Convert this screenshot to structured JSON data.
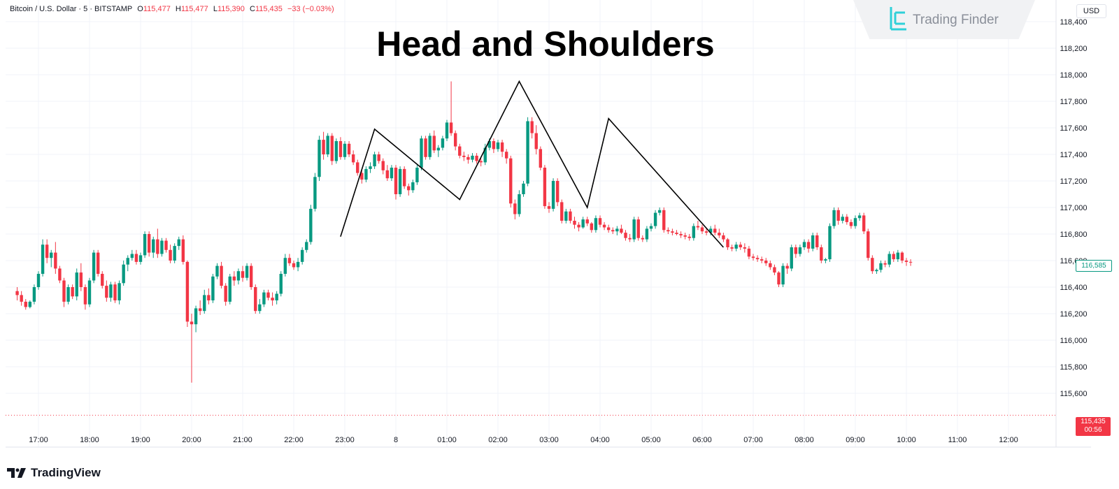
{
  "legend": {
    "symbol": "Bitcoin / U.S. Dollar · 5 · BITSTAMP",
    "open_label": "O",
    "open": "115,477",
    "high_label": "H",
    "high": "115,477",
    "low_label": "L",
    "low": "115,390",
    "close_label": "C",
    "close": "115,435",
    "change": "−33 (−0.03%)"
  },
  "currency": "USD",
  "watermark": {
    "text": "Trading Finder"
  },
  "footer_logo": "TradingView",
  "price_tags": {
    "current": "116,585",
    "last": "115,435",
    "countdown": "00:56"
  },
  "colors": {
    "up": "#089981",
    "down": "#f23645",
    "pattern_line": "#000000",
    "grid": "#f0f3fa"
  },
  "chart_data": {
    "type": "candlestick",
    "title": "Head and Shoulders",
    "xlabel": "",
    "ylabel": "",
    "ylim": [
      115500,
      118500
    ],
    "y_ticks": [
      "115,600",
      "115,800",
      "116,000",
      "116,200",
      "116,400",
      "116,600",
      "116,800",
      "117,000",
      "117,200",
      "117,400",
      "117,600",
      "117,800",
      "118,000",
      "118,200",
      "118,400"
    ],
    "x_ticks": [
      "17:00",
      "18:00",
      "19:00",
      "20:00",
      "21:00",
      "22:00",
      "23:00",
      "8",
      "01:00",
      "02:00",
      "03:00",
      "04:00",
      "05:00",
      "06:00",
      "07:00",
      "08:00",
      "09:00",
      "10:00",
      "11:00",
      "12:00"
    ],
    "candle_interval_minutes": 5,
    "first_candle_time": "16:35",
    "last_price": 115435,
    "current_price": 116585,
    "candles": [
      [
        116370,
        116400,
        116300,
        116340
      ],
      [
        116340,
        116370,
        116260,
        116290
      ],
      [
        116290,
        116310,
        116230,
        116250
      ],
      [
        116250,
        116300,
        116240,
        116290
      ],
      [
        116290,
        116420,
        116270,
        116400
      ],
      [
        116400,
        116520,
        116380,
        116500
      ],
      [
        116500,
        116760,
        116480,
        116720
      ],
      [
        116720,
        116760,
        116580,
        116620
      ],
      [
        116620,
        116680,
        116550,
        116660
      ],
      [
        116660,
        116740,
        116500,
        116540
      ],
      [
        116540,
        116560,
        116430,
        116450
      ],
      [
        116450,
        116470,
        116250,
        116290
      ],
      [
        116290,
        116420,
        116270,
        116400
      ],
      [
        116400,
        116420,
        116310,
        116330
      ],
      [
        116330,
        116540,
        116300,
        116510
      ],
      [
        116510,
        116580,
        116370,
        116400
      ],
      [
        116400,
        116420,
        116230,
        116270
      ],
      [
        116270,
        116470,
        116250,
        116450
      ],
      [
        116450,
        116680,
        116430,
        116660
      ],
      [
        116660,
        116680,
        116480,
        116500
      ],
      [
        116500,
        116520,
        116390,
        116410
      ],
      [
        116410,
        116450,
        116290,
        116320
      ],
      [
        116320,
        116440,
        116290,
        116420
      ],
      [
        116420,
        116440,
        116280,
        116300
      ],
      [
        116300,
        116450,
        116270,
        116430
      ],
      [
        116430,
        116600,
        116410,
        116570
      ],
      [
        116570,
        116640,
        116520,
        116620
      ],
      [
        116620,
        116680,
        116600,
        116650
      ],
      [
        116650,
        116680,
        116570,
        116590
      ],
      [
        116590,
        116660,
        116570,
        116640
      ],
      [
        116640,
        116820,
        116620,
        116800
      ],
      [
        116800,
        116820,
        116630,
        116660
      ],
      [
        116660,
        116780,
        116620,
        116760
      ],
      [
        116760,
        116840,
        116620,
        116650
      ],
      [
        116650,
        116770,
        116630,
        116750
      ],
      [
        116750,
        116770,
        116660,
        116680
      ],
      [
        116680,
        116720,
        116580,
        116600
      ],
      [
        116600,
        116730,
        116580,
        116710
      ],
      [
        116710,
        116780,
        116680,
        116760
      ],
      [
        116760,
        116790,
        116570,
        116590
      ],
      [
        116590,
        116600,
        116100,
        116140
      ],
      [
        116140,
        116200,
        115680,
        116120
      ],
      [
        116120,
        116260,
        116060,
        116240
      ],
      [
        116240,
        116300,
        116190,
        116220
      ],
      [
        116220,
        116380,
        116200,
        116340
      ],
      [
        116340,
        116390,
        116270,
        116300
      ],
      [
        116300,
        116500,
        116280,
        116480
      ],
      [
        116480,
        116580,
        116460,
        116560
      ],
      [
        116560,
        116590,
        116390,
        116410
      ],
      [
        116410,
        116430,
        116260,
        116290
      ],
      [
        116290,
        116500,
        116270,
        116480
      ],
      [
        116480,
        116520,
        116410,
        116450
      ],
      [
        116450,
        116540,
        116420,
        116520
      ],
      [
        116520,
        116560,
        116440,
        116470
      ],
      [
        116470,
        116580,
        116450,
        116560
      ],
      [
        116560,
        116580,
        116380,
        116400
      ],
      [
        116400,
        116420,
        116200,
        116220
      ],
      [
        116220,
        116310,
        116200,
        116270
      ],
      [
        116270,
        116380,
        116250,
        116360
      ],
      [
        116360,
        116380,
        116300,
        116320
      ],
      [
        116320,
        116360,
        116260,
        116300
      ],
      [
        116300,
        116370,
        116270,
        116350
      ],
      [
        116350,
        116520,
        116330,
        116500
      ],
      [
        116500,
        116650,
        116480,
        116620
      ],
      [
        116620,
        116650,
        116560,
        116580
      ],
      [
        116580,
        116600,
        116530,
        116550
      ],
      [
        116550,
        116620,
        116520,
        116590
      ],
      [
        116590,
        116700,
        116570,
        116680
      ],
      [
        116680,
        116760,
        116660,
        116740
      ],
      [
        116740,
        117020,
        116720,
        116990
      ],
      [
        116990,
        117260,
        116970,
        117230
      ],
      [
        117230,
        117540,
        117200,
        117510
      ],
      [
        117510,
        117570,
        117360,
        117400
      ],
      [
        117400,
        117560,
        117380,
        117540
      ],
      [
        117540,
        117560,
        117320,
        117350
      ],
      [
        117350,
        117520,
        117330,
        117500
      ],
      [
        117500,
        117530,
        117360,
        117380
      ],
      [
        117380,
        117500,
        117360,
        117480
      ],
      [
        117480,
        117500,
        117380,
        117400
      ],
      [
        117400,
        117430,
        117320,
        117340
      ],
      [
        117340,
        117360,
        117240,
        117260
      ],
      [
        117260,
        117290,
        117180,
        117210
      ],
      [
        117210,
        117310,
        117190,
        117290
      ],
      [
        117290,
        117340,
        117260,
        117310
      ],
      [
        117310,
        117420,
        117290,
        117400
      ],
      [
        117400,
        117420,
        117330,
        117350
      ],
      [
        117350,
        117370,
        117250,
        117280
      ],
      [
        117280,
        117320,
        117200,
        117220
      ],
      [
        117220,
        117320,
        117200,
        117300
      ],
      [
        117300,
        117320,
        117060,
        117100
      ],
      [
        117100,
        117310,
        117080,
        117290
      ],
      [
        117290,
        117310,
        117140,
        117160
      ],
      [
        117160,
        117180,
        117090,
        117130
      ],
      [
        117130,
        117210,
        117110,
        117190
      ],
      [
        117190,
        117320,
        117170,
        117300
      ],
      [
        117300,
        117540,
        117280,
        117520
      ],
      [
        117520,
        117540,
        117360,
        117380
      ],
      [
        117380,
        117560,
        117360,
        117540
      ],
      [
        117540,
        117580,
        117410,
        117430
      ],
      [
        117430,
        117470,
        117380,
        117450
      ],
      [
        117450,
        117540,
        117430,
        117520
      ],
      [
        117520,
        117660,
        117500,
        117640
      ],
      [
        117640,
        117950,
        117540,
        117560
      ],
      [
        117560,
        117580,
        117430,
        117460
      ],
      [
        117460,
        117480,
        117370,
        117390
      ],
      [
        117390,
        117420,
        117350,
        117380
      ],
      [
        117380,
        117400,
        117330,
        117360
      ],
      [
        117360,
        117410,
        117340,
        117390
      ],
      [
        117390,
        117410,
        117330,
        117350
      ],
      [
        117350,
        117370,
        117310,
        117340
      ],
      [
        117340,
        117480,
        117320,
        117450
      ],
      [
        117450,
        117520,
        117430,
        117500
      ],
      [
        117500,
        117520,
        117410,
        117440
      ],
      [
        117440,
        117510,
        117420,
        117490
      ],
      [
        117490,
        117510,
        117380,
        117420
      ],
      [
        117420,
        117440,
        117330,
        117370
      ],
      [
        117370,
        117390,
        117000,
        117030
      ],
      [
        117030,
        117060,
        116910,
        116950
      ],
      [
        116950,
        117130,
        116930,
        117100
      ],
      [
        117100,
        117200,
        117080,
        117180
      ],
      [
        117180,
        117680,
        117160,
        117650
      ],
      [
        117650,
        117680,
        117520,
        117560
      ],
      [
        117560,
        117620,
        117400,
        117440
      ],
      [
        117440,
        117460,
        117280,
        117300
      ],
      [
        117300,
        117320,
        116990,
        117010
      ],
      [
        117010,
        117040,
        116960,
        116990
      ],
      [
        116990,
        117220,
        116970,
        117200
      ],
      [
        117200,
        117220,
        117010,
        117040
      ],
      [
        117040,
        117060,
        116880,
        116900
      ],
      [
        116900,
        116990,
        116880,
        116970
      ],
      [
        116970,
        116990,
        116880,
        116900
      ],
      [
        116900,
        116930,
        116840,
        116870
      ],
      [
        116870,
        116890,
        116820,
        116850
      ],
      [
        116850,
        116930,
        116840,
        116910
      ],
      [
        116910,
        116930,
        116860,
        116880
      ],
      [
        116880,
        116890,
        116810,
        116830
      ],
      [
        116830,
        116940,
        116810,
        116920
      ],
      [
        116920,
        116940,
        116850,
        116870
      ],
      [
        116870,
        116890,
        116830,
        116850
      ],
      [
        116850,
        116870,
        116810,
        116830
      ],
      [
        116830,
        116850,
        116800,
        116820
      ],
      [
        116820,
        116860,
        116790,
        116840
      ],
      [
        116840,
        116870,
        116800,
        116810
      ],
      [
        116810,
        116830,
        116750,
        116770
      ],
      [
        116770,
        116800,
        116740,
        116760
      ],
      [
        116760,
        116930,
        116740,
        116910
      ],
      [
        116910,
        116930,
        116750,
        116770
      ],
      [
        116770,
        116790,
        116740,
        116760
      ],
      [
        116760,
        116860,
        116740,
        116840
      ],
      [
        116840,
        116880,
        116820,
        116860
      ],
      [
        116860,
        116980,
        116840,
        116960
      ],
      [
        116960,
        117000,
        116940,
        116980
      ],
      [
        116980,
        117000,
        116810,
        116830
      ],
      [
        116830,
        116850,
        116800,
        116820
      ],
      [
        116820,
        116840,
        116790,
        116810
      ],
      [
        116810,
        116830,
        116790,
        116800
      ],
      [
        116800,
        116820,
        116770,
        116790
      ],
      [
        116790,
        116810,
        116760,
        116780
      ],
      [
        116780,
        116800,
        116750,
        116770
      ],
      [
        116770,
        116880,
        116750,
        116860
      ],
      [
        116860,
        116900,
        116830,
        116850
      ],
      [
        116850,
        116870,
        116800,
        116820
      ],
      [
        116820,
        116840,
        116790,
        116810
      ],
      [
        116810,
        116860,
        116790,
        116840
      ],
      [
        116840,
        116870,
        116790,
        116810
      ],
      [
        116810,
        116840,
        116770,
        116790
      ],
      [
        116790,
        116810,
        116740,
        116760
      ],
      [
        116760,
        116770,
        116680,
        116700
      ],
      [
        116700,
        116720,
        116670,
        116690
      ],
      [
        116690,
        116740,
        116670,
        116720
      ],
      [
        116720,
        116740,
        116680,
        116700
      ],
      [
        116700,
        116730,
        116660,
        116690
      ],
      [
        116690,
        116710,
        116610,
        116630
      ],
      [
        116630,
        116650,
        116600,
        116620
      ],
      [
        116620,
        116640,
        116590,
        116610
      ],
      [
        116610,
        116630,
        116580,
        116600
      ],
      [
        116600,
        116620,
        116560,
        116580
      ],
      [
        116580,
        116600,
        116530,
        116550
      ],
      [
        116550,
        116570,
        116490,
        116510
      ],
      [
        116510,
        116520,
        116400,
        116420
      ],
      [
        116420,
        116580,
        116400,
        116560
      ],
      [
        116560,
        116580,
        116500,
        116540
      ],
      [
        116540,
        116720,
        116520,
        116700
      ],
      [
        116700,
        116720,
        116620,
        116650
      ],
      [
        116650,
        116720,
        116630,
        116700
      ],
      [
        116700,
        116760,
        116680,
        116740
      ],
      [
        116740,
        116760,
        116660,
        116690
      ],
      [
        116690,
        116810,
        116670,
        116790
      ],
      [
        116790,
        116810,
        116680,
        116700
      ],
      [
        116700,
        116720,
        116580,
        116600
      ],
      [
        116600,
        116620,
        116580,
        116610
      ],
      [
        116610,
        116880,
        116590,
        116860
      ],
      [
        116860,
        117000,
        116840,
        116980
      ],
      [
        116980,
        117000,
        116870,
        116900
      ],
      [
        116900,
        116950,
        116880,
        116930
      ],
      [
        116930,
        116950,
        116870,
        116890
      ],
      [
        116890,
        116910,
        116840,
        116860
      ],
      [
        116860,
        116940,
        116840,
        116920
      ],
      [
        116920,
        116960,
        116900,
        116940
      ],
      [
        116940,
        116960,
        116800,
        116820
      ],
      [
        116820,
        116840,
        116600,
        116620
      ],
      [
        116620,
        116640,
        116500,
        116520
      ],
      [
        116520,
        116540,
        116500,
        116530
      ],
      [
        116530,
        116600,
        116510,
        116580
      ],
      [
        116580,
        116600,
        116550,
        116570
      ],
      [
        116570,
        116670,
        116550,
        116650
      ],
      [
        116650,
        116670,
        116590,
        116610
      ],
      [
        116610,
        116680,
        116590,
        116660
      ],
      [
        116660,
        116670,
        116580,
        116600
      ],
      [
        116600,
        116620,
        116560,
        116590
      ],
      [
        116590,
        116610,
        116560,
        116585
      ]
    ],
    "annotations": {
      "pattern_polyline": [
        {
          "time": "22:55",
          "price": 116780
        },
        {
          "time": "23:35",
          "price": 117590
        },
        {
          "time": "01:15",
          "price": 117060
        },
        {
          "time": "02:25",
          "price": 117950
        },
        {
          "time": "03:45",
          "price": 117000
        },
        {
          "time": "04:10",
          "price": 117670
        },
        {
          "time": "06:25",
          "price": 116700
        }
      ]
    }
  }
}
